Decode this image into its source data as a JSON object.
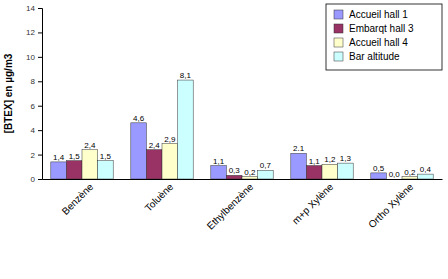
{
  "chart_data": {
    "type": "bar",
    "y_label": "[BTEX] en µg/m3",
    "categories": [
      "Benzène",
      "Toluène",
      "Ethylbenzène",
      "m+p Xylène",
      "Ortho Xylène"
    ],
    "series": [
      {
        "name": "Accueil hall 1",
        "color": "#9999ff",
        "values": [
          1.4,
          4.6,
          1.1,
          2.1,
          0.5
        ],
        "value_labels": [
          "1,4",
          "4,6",
          "1,1",
          "2.1",
          "0,5"
        ]
      },
      {
        "name": "Embarqt hall 3",
        "color": "#993366",
        "values": [
          1.5,
          2.4,
          0.3,
          1.1,
          0.0
        ],
        "value_labels": [
          "1,5",
          "2,4",
          "0,3",
          "1,1",
          "0,0"
        ]
      },
      {
        "name": "Accueil hall 4",
        "color": "#ffffcc",
        "values": [
          2.4,
          2.9,
          0.2,
          1.2,
          0.2
        ],
        "value_labels": [
          "2,4",
          "2,9",
          "0,2",
          "1,2",
          "0,2"
        ]
      },
      {
        "name": "Bar altitude",
        "color": "#ccffff",
        "values": [
          1.5,
          8.1,
          0.7,
          1.3,
          0.4
        ],
        "value_labels": [
          "1,5",
          "8,1",
          "0,7",
          "1,3",
          "0,4"
        ]
      }
    ],
    "ylim": [
      0,
      14
    ],
    "yticks": [
      0,
      2,
      4,
      6,
      8,
      10,
      12,
      14
    ],
    "grid": false,
    "legend": "top-right",
    "data_labels": true
  }
}
